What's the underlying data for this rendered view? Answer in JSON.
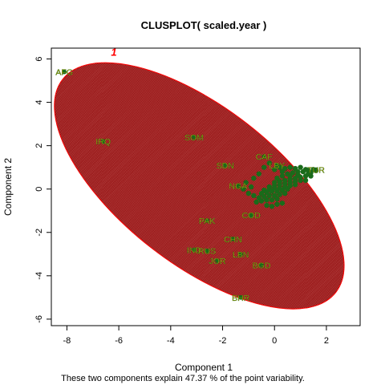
{
  "chart_data": {
    "type": "scatter",
    "title": "CLUSPLOT( scaled.year )",
    "xlabel": "Component 1",
    "ylabel": "Component 2",
    "footnote": "These two components explain 47.37 % of the point variability.",
    "xlim": [
      -8.6,
      3.3
    ],
    "ylim": [
      -6.3,
      6.5
    ],
    "x_ticks": [
      -8,
      -6,
      -4,
      -2,
      0,
      2
    ],
    "y_ticks": [
      -6,
      -4,
      -2,
      0,
      2,
      4,
      6
    ],
    "y_tick_labels": [
      "-6",
      "-4",
      "-2",
      "0",
      "2",
      "4",
      "6"
    ],
    "x_tick_labels": [
      "-8",
      "-6",
      "-4",
      "-2",
      "0",
      "2"
    ],
    "cluster": {
      "label": "1",
      "center": [
        -2.9,
        0.15
      ],
      "semi_major": 7.2,
      "semi_minor": 3.3,
      "angle_deg": -43,
      "fill_color": "#8b0000",
      "border_color": "#ff0000"
    },
    "point_color": "#1a6b1a",
    "label_color": "#b8a000",
    "labeled_points": [
      {
        "name": "AFG",
        "x": -8.1,
        "y": 5.4
      },
      {
        "name": "IRQ",
        "x": -6.6,
        "y": 2.2
      },
      {
        "name": "SOM",
        "x": -3.1,
        "y": 2.4
      },
      {
        "name": "SDN",
        "x": -1.9,
        "y": 1.1
      },
      {
        "name": "NGA",
        "x": -1.4,
        "y": 0.15
      },
      {
        "name": "PAK",
        "x": -2.6,
        "y": -1.45
      },
      {
        "name": "COD",
        "x": -0.9,
        "y": -1.2
      },
      {
        "name": "CHN",
        "x": -1.6,
        "y": -2.3
      },
      {
        "name": "IND",
        "x": -3.1,
        "y": -2.8
      },
      {
        "name": "RUS",
        "x": -2.6,
        "y": -2.85
      },
      {
        "name": "JOR",
        "x": -2.2,
        "y": -3.3
      },
      {
        "name": "LBN",
        "x": -1.3,
        "y": -3.0
      },
      {
        "name": "BGD",
        "x": -0.5,
        "y": -3.5
      },
      {
        "name": "BHR",
        "x": -1.3,
        "y": -5.0
      },
      {
        "name": "CAF",
        "x": -0.4,
        "y": 1.5
      },
      {
        "name": "LBY",
        "x": 0.1,
        "y": 1.1
      },
      {
        "name": "TUR",
        "x": 1.6,
        "y": 0.9
      }
    ],
    "dense_points": [
      [
        0.1,
        0.5
      ],
      [
        0.3,
        0.6
      ],
      [
        0.5,
        0.7
      ],
      [
        0.7,
        0.75
      ],
      [
        0.9,
        0.8
      ],
      [
        1.1,
        0.8
      ],
      [
        1.3,
        0.85
      ],
      [
        1.5,
        0.9
      ],
      [
        1.6,
        0.85
      ],
      [
        0.0,
        0.3
      ],
      [
        0.2,
        0.35
      ],
      [
        0.4,
        0.4
      ],
      [
        0.6,
        0.45
      ],
      [
        0.8,
        0.5
      ],
      [
        1.0,
        0.55
      ],
      [
        1.2,
        0.6
      ],
      [
        1.4,
        0.6
      ],
      [
        -0.2,
        0.1
      ],
      [
        0.0,
        0.15
      ],
      [
        0.2,
        0.2
      ],
      [
        0.4,
        0.25
      ],
      [
        0.6,
        0.3
      ],
      [
        0.8,
        0.35
      ],
      [
        1.0,
        0.4
      ],
      [
        1.2,
        0.4
      ],
      [
        -0.4,
        -0.05
      ],
      [
        -0.2,
        0.0
      ],
      [
        0.0,
        0.05
      ],
      [
        0.2,
        0.05
      ],
      [
        0.4,
        0.1
      ],
      [
        0.6,
        0.15
      ],
      [
        0.8,
        0.2
      ],
      [
        -0.5,
        -0.2
      ],
      [
        -0.3,
        -0.15
      ],
      [
        -0.1,
        -0.1
      ],
      [
        0.1,
        -0.1
      ],
      [
        0.3,
        -0.05
      ],
      [
        0.5,
        0.0
      ],
      [
        -0.6,
        -0.4
      ],
      [
        -0.4,
        -0.35
      ],
      [
        -0.2,
        -0.3
      ],
      [
        0.0,
        -0.3
      ],
      [
        0.2,
        -0.25
      ],
      [
        0.4,
        -0.2
      ],
      [
        -0.7,
        -0.6
      ],
      [
        -0.5,
        -0.55
      ],
      [
        -0.3,
        -0.5
      ],
      [
        -0.1,
        -0.5
      ],
      [
        0.1,
        -0.45
      ],
      [
        -0.3,
        -0.75
      ],
      [
        -0.1,
        -0.8
      ],
      [
        0.1,
        -0.7
      ],
      [
        0.3,
        -0.65
      ],
      [
        -0.9,
        0.1
      ],
      [
        -1.1,
        0.3
      ],
      [
        -0.8,
        0.5
      ],
      [
        -0.6,
        0.7
      ],
      [
        -0.4,
        1.0
      ],
      [
        -0.2,
        1.2
      ],
      [
        0.0,
        0.9
      ],
      [
        0.2,
        1.0
      ],
      [
        0.4,
        0.95
      ],
      [
        0.6,
        1.0
      ],
      [
        0.8,
        0.95
      ],
      [
        1.0,
        1.0
      ],
      [
        1.2,
        0.9
      ],
      [
        1.4,
        0.75
      ],
      [
        -1.0,
        -0.2
      ],
      [
        -1.2,
        0.0
      ],
      [
        -0.8,
        -0.3
      ],
      [
        0.6,
        0.6
      ],
      [
        0.9,
        0.65
      ],
      [
        1.3,
        0.7
      ],
      [
        0.3,
        0.8
      ]
    ]
  }
}
